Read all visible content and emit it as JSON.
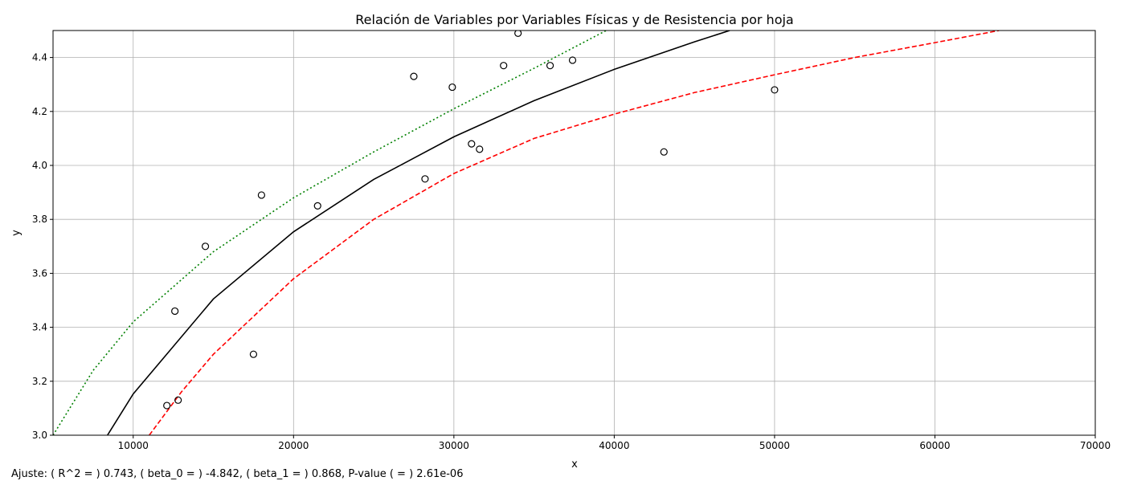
{
  "chart_data": {
    "type": "scatter",
    "title": "Relación de Variables por Variables Físicas y de Resistencia por hoja",
    "x_label": "x",
    "y_label": "y",
    "annotation": "Ajuste: ( R^2 = ) 0.743, ( beta_0 = ) -4.842, ( beta_1 = ) 0.868, P-value ( = ) 2.61e-06",
    "xlim": [
      5000,
      70000
    ],
    "ylim": [
      3.0,
      4.5
    ],
    "xticks": [
      10000,
      20000,
      30000,
      40000,
      50000,
      60000,
      70000
    ],
    "yticks": [
      {
        "value": 3.0,
        "label": "3.0"
      },
      3.2,
      3.4,
      3.6,
      3.8,
      {
        "value": 4.0,
        "label": "4.0"
      },
      4.2,
      4.4
    ],
    "grid": true,
    "points": {
      "color": "#000000",
      "x": [
        12100,
        12800,
        12600,
        14500,
        17500,
        18000,
        21500,
        27500,
        28200,
        29900,
        31100,
        31600,
        33100,
        34000,
        36000,
        37400,
        43100,
        50000
      ],
      "y": [
        3.11,
        3.13,
        3.46,
        3.7,
        3.3,
        3.89,
        3.85,
        4.33,
        3.95,
        4.29,
        4.08,
        4.06,
        4.37,
        4.49,
        4.37,
        4.39,
        4.05,
        4.28
      ]
    },
    "lines": [
      {
        "color": "#000000",
        "linestyle": "solid",
        "x": [
          8300,
          10000,
          15000,
          20000,
          25000,
          30000,
          35000,
          40000,
          45000,
          47200
        ],
        "values": [
          2.991,
          3.153,
          3.505,
          3.754,
          3.948,
          4.106,
          4.24,
          4.356,
          4.458,
          4.5
        ]
      },
      {
        "color": "#008000",
        "linestyle": "dotted",
        "x": [
          5000,
          7500,
          10000,
          15000,
          20000,
          25000,
          30000,
          35000,
          39500
        ],
        "values": [
          3.0,
          3.24,
          3.42,
          3.68,
          3.88,
          4.05,
          4.21,
          4.36,
          4.5
        ]
      },
      {
        "color": "#ff0000",
        "linestyle": "dashed",
        "x": [
          11000,
          13000,
          15000,
          20000,
          25000,
          30000,
          35000,
          40000,
          45000,
          50000,
          55000,
          60000,
          64000
        ],
        "values": [
          3.0,
          3.16,
          3.3,
          3.58,
          3.8,
          3.97,
          4.1,
          4.19,
          4.27,
          4.336,
          4.4,
          4.455,
          4.5
        ]
      }
    ]
  }
}
